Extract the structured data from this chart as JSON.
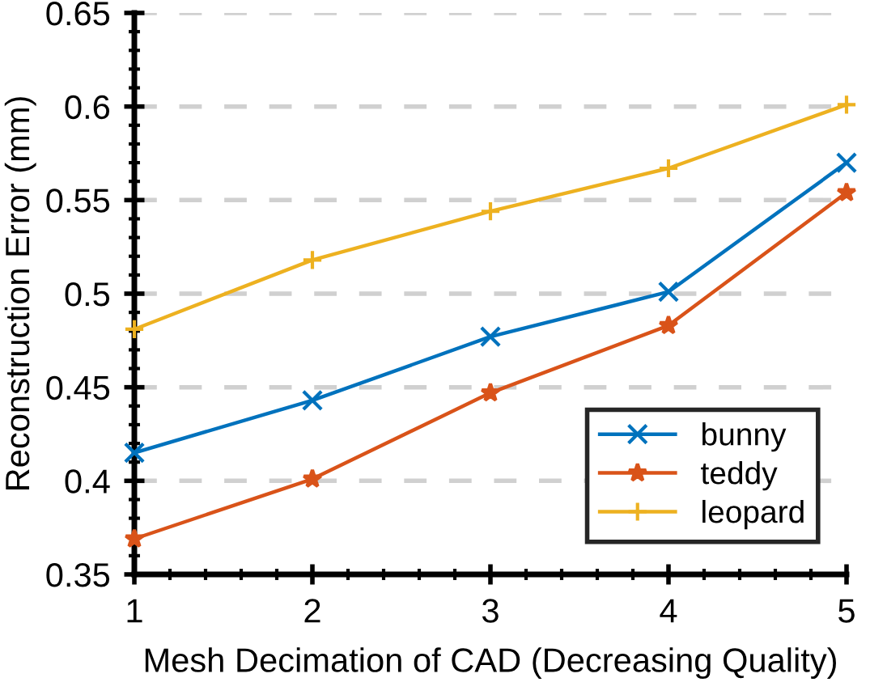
{
  "chart_data": {
    "type": "line",
    "xlabel": "Mesh Decimation of CAD (Decreasing Quality)",
    "ylabel": "Reconstruction Error (mm)",
    "x": [
      1,
      2,
      3,
      4,
      5
    ],
    "series": [
      {
        "name": "bunny",
        "color": "#0072bd",
        "marker": "cross",
        "values": [
          0.415,
          0.443,
          0.477,
          0.501,
          0.57
        ]
      },
      {
        "name": "teddy",
        "color": "#d95319",
        "marker": "star",
        "values": [
          0.369,
          0.401,
          0.447,
          0.483,
          0.554
        ]
      },
      {
        "name": "leopard",
        "color": "#edb120",
        "marker": "plus",
        "values": [
          0.481,
          0.518,
          0.544,
          0.567,
          0.601
        ]
      }
    ],
    "xlim": [
      1,
      5
    ],
    "xticks": [
      1,
      2,
      3,
      4,
      5
    ],
    "ylim": [
      0.35,
      0.65
    ],
    "yticks": [
      0.35,
      0.4,
      0.45,
      0.5,
      0.55,
      0.6,
      0.65
    ],
    "grid": "y",
    "legend": "bottom right",
    "line_style": "solid"
  }
}
